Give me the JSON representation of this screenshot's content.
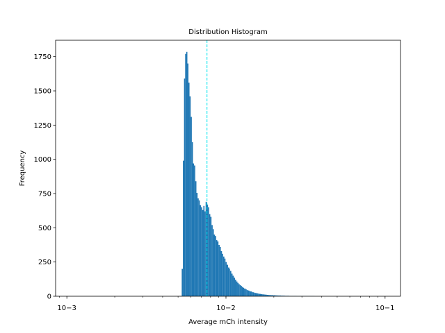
{
  "chart_data": {
    "type": "bar",
    "title": "Distribution Histogram",
    "xlabel": "Average mCh intensity",
    "ylabel": "Frequency",
    "x_scale": "log",
    "xlim": [
      0.00085,
      0.125
    ],
    "ylim": [
      0,
      1870
    ],
    "y_ticks": [
      0,
      250,
      500,
      750,
      1000,
      1250,
      1500,
      1750
    ],
    "y_tick_labels": [
      "0",
      "250",
      "500",
      "750",
      "1000",
      "1250",
      "1500",
      "1750"
    ],
    "x_ticks": [
      0.001,
      0.01,
      0.1
    ],
    "x_tick_labels": [
      "10−3",
      "10−2",
      "10−1"
    ],
    "grid": false,
    "bar_color": "#1f77b4",
    "marker_color": "#00e5ee",
    "vline_x": 0.0076,
    "bins": [
      [
        0.00527,
        0.00536,
        200
      ],
      [
        0.00536,
        0.00545,
        990
      ],
      [
        0.00545,
        0.00554,
        1590
      ],
      [
        0.00554,
        0.00563,
        1770
      ],
      [
        0.00563,
        0.00572,
        1785
      ],
      [
        0.00572,
        0.00581,
        1700
      ],
      [
        0.00581,
        0.0059,
        1560
      ],
      [
        0.0059,
        0.006,
        1460
      ],
      [
        0.006,
        0.0061,
        1310
      ],
      [
        0.0061,
        0.0062,
        1125
      ],
      [
        0.0062,
        0.0063,
        970
      ],
      [
        0.0063,
        0.00641,
        955
      ],
      [
        0.00641,
        0.00652,
        840
      ],
      [
        0.00652,
        0.00663,
        755
      ],
      [
        0.00663,
        0.00674,
        715
      ],
      [
        0.00674,
        0.00685,
        700
      ],
      [
        0.00685,
        0.00697,
        665
      ],
      [
        0.00697,
        0.00709,
        650
      ],
      [
        0.00709,
        0.00721,
        630
      ],
      [
        0.00721,
        0.00733,
        660
      ],
      [
        0.00733,
        0.00745,
        620
      ],
      [
        0.00745,
        0.00758,
        690
      ],
      [
        0.00758,
        0.00771,
        670
      ],
      [
        0.00771,
        0.00784,
        650
      ],
      [
        0.00784,
        0.00797,
        600
      ],
      [
        0.00797,
        0.00811,
        580
      ],
      [
        0.00811,
        0.00825,
        520
      ],
      [
        0.00825,
        0.00839,
        490
      ],
      [
        0.00839,
        0.00853,
        450
      ],
      [
        0.00853,
        0.00868,
        440
      ],
      [
        0.00868,
        0.00882,
        410
      ],
      [
        0.00882,
        0.00897,
        400
      ],
      [
        0.00897,
        0.00913,
        375
      ],
      [
        0.00913,
        0.00928,
        360
      ],
      [
        0.00928,
        0.00944,
        330
      ],
      [
        0.00944,
        0.0096,
        310
      ],
      [
        0.0096,
        0.00977,
        290
      ],
      [
        0.00977,
        0.00993,
        275
      ],
      [
        0.00993,
        0.0101,
        250
      ],
      [
        0.0101,
        0.0103,
        230
      ],
      [
        0.0103,
        0.0105,
        210
      ],
      [
        0.0105,
        0.0106,
        200
      ],
      [
        0.0106,
        0.0108,
        185
      ],
      [
        0.0108,
        0.011,
        165
      ],
      [
        0.011,
        0.0112,
        150
      ],
      [
        0.0112,
        0.0114,
        135
      ],
      [
        0.0114,
        0.0116,
        120
      ],
      [
        0.0116,
        0.0118,
        108
      ],
      [
        0.0118,
        0.012,
        98
      ],
      [
        0.012,
        0.0122,
        88
      ],
      [
        0.0122,
        0.0124,
        82
      ],
      [
        0.0124,
        0.0126,
        75
      ],
      [
        0.0126,
        0.0128,
        68
      ],
      [
        0.0128,
        0.013,
        62
      ],
      [
        0.013,
        0.0133,
        56
      ],
      [
        0.0133,
        0.0135,
        50
      ],
      [
        0.0135,
        0.0137,
        46
      ],
      [
        0.0137,
        0.014,
        42
      ],
      [
        0.014,
        0.0142,
        38
      ],
      [
        0.0142,
        0.0145,
        35
      ],
      [
        0.0145,
        0.0147,
        32
      ],
      [
        0.0147,
        0.015,
        29
      ],
      [
        0.015,
        0.0152,
        26
      ],
      [
        0.0152,
        0.0155,
        24
      ],
      [
        0.0155,
        0.0158,
        22
      ],
      [
        0.0158,
        0.016,
        20
      ],
      [
        0.016,
        0.0163,
        18
      ],
      [
        0.0163,
        0.0166,
        17
      ],
      [
        0.0166,
        0.0169,
        15
      ],
      [
        0.0169,
        0.0172,
        14
      ],
      [
        0.0172,
        0.0175,
        13
      ],
      [
        0.0175,
        0.0178,
        12
      ],
      [
        0.0178,
        0.0181,
        11
      ],
      [
        0.0181,
        0.0184,
        10
      ],
      [
        0.0184,
        0.0187,
        9
      ],
      [
        0.0187,
        0.019,
        9
      ],
      [
        0.019,
        0.0194,
        8
      ],
      [
        0.0194,
        0.0197,
        8
      ],
      [
        0.0197,
        0.02,
        7
      ],
      [
        0.02,
        0.0204,
        7
      ],
      [
        0.0204,
        0.0207,
        6
      ],
      [
        0.0207,
        0.0211,
        6
      ],
      [
        0.0211,
        0.0215,
        5
      ],
      [
        0.0215,
        0.0218,
        5
      ],
      [
        0.0218,
        0.0222,
        5
      ],
      [
        0.0222,
        0.0226,
        4
      ],
      [
        0.0226,
        0.023,
        4
      ],
      [
        0.023,
        0.0234,
        4
      ],
      [
        0.0234,
        0.0238,
        3
      ],
      [
        0.0238,
        0.0242,
        3
      ],
      [
        0.0242,
        0.0246,
        3
      ],
      [
        0.0246,
        0.025,
        3
      ],
      [
        0.025,
        0.0255,
        2
      ],
      [
        0.0255,
        0.0259,
        2
      ],
      [
        0.0259,
        0.0264,
        2
      ],
      [
        0.0264,
        0.0268,
        2
      ],
      [
        0.0268,
        0.0273,
        2
      ],
      [
        0.0273,
        0.0278,
        2
      ],
      [
        0.0278,
        0.0282,
        1
      ],
      [
        0.0282,
        0.0287,
        1
      ],
      [
        0.0287,
        0.0292,
        1
      ],
      [
        0.0292,
        0.0297,
        1
      ],
      [
        0.0297,
        0.0303,
        1
      ],
      [
        0.0303,
        0.0308,
        1
      ],
      [
        0.0308,
        0.0313,
        1
      ],
      [
        0.0313,
        0.0319,
        1
      ],
      [
        0.0319,
        0.0324,
        1
      ],
      [
        0.0324,
        0.033,
        1
      ],
      [
        0.033,
        0.0336,
        1
      ],
      [
        0.0336,
        0.0342,
        1
      ],
      [
        0.0342,
        0.0348,
        1
      ],
      [
        0.0348,
        0.0354,
        1
      ],
      [
        0.0354,
        0.036,
        1
      ]
    ]
  }
}
